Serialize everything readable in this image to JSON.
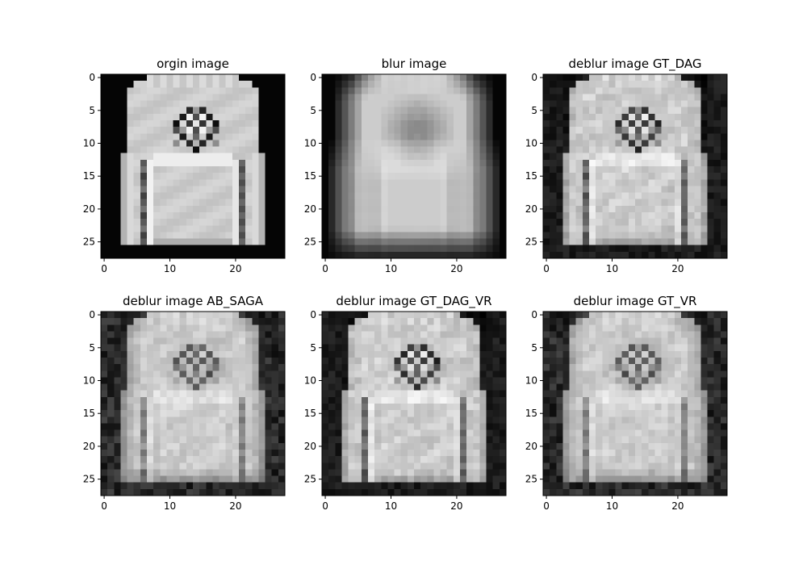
{
  "figure": {
    "background": "#ffffff",
    "colormap": "gray",
    "panels_note": ""
  },
  "chart_data": [
    {
      "type": "heatmap",
      "title": "orgin image",
      "image_size": [
        28,
        28
      ],
      "variant": "original",
      "xticks": [
        0,
        10,
        20
      ],
      "yticks": [
        0,
        5,
        10,
        15,
        20,
        25
      ],
      "xlim": [
        -0.5,
        27.5
      ],
      "ylim": [
        27.5,
        -0.5
      ],
      "grid": false,
      "colormap": "gray"
    },
    {
      "type": "heatmap",
      "title": "blur image",
      "image_size": [
        28,
        28
      ],
      "variant": "blur",
      "xticks": [
        0,
        10,
        20
      ],
      "yticks": [
        0,
        5,
        10,
        15,
        20,
        25
      ],
      "xlim": [
        -0.5,
        27.5
      ],
      "ylim": [
        27.5,
        -0.5
      ],
      "grid": false,
      "colormap": "gray"
    },
    {
      "type": "heatmap",
      "title": "deblur image GT_DAG",
      "image_size": [
        28,
        28
      ],
      "variant": "deblur_sharp",
      "xticks": [
        0,
        10,
        20
      ],
      "yticks": [
        0,
        5,
        10,
        15,
        20,
        25
      ],
      "xlim": [
        -0.5,
        27.5
      ],
      "ylim": [
        27.5,
        -0.5
      ],
      "grid": false,
      "colormap": "gray"
    },
    {
      "type": "heatmap",
      "title": "deblur image AB_SAGA",
      "image_size": [
        28,
        28
      ],
      "variant": "deblur_soft",
      "xticks": [
        0,
        10,
        20
      ],
      "yticks": [
        0,
        5,
        10,
        15,
        20,
        25
      ],
      "xlim": [
        -0.5,
        27.5
      ],
      "ylim": [
        27.5,
        -0.5
      ],
      "grid": false,
      "colormap": "gray"
    },
    {
      "type": "heatmap",
      "title": "deblur image GT_DAG_VR",
      "image_size": [
        28,
        28
      ],
      "variant": "deblur_sharp",
      "xticks": [
        0,
        10,
        20
      ],
      "yticks": [
        0,
        5,
        10,
        15,
        20,
        25
      ],
      "xlim": [
        -0.5,
        27.5
      ],
      "ylim": [
        27.5,
        -0.5
      ],
      "grid": false,
      "colormap": "gray"
    },
    {
      "type": "heatmap",
      "title": "deblur image GT_VR",
      "image_size": [
        28,
        28
      ],
      "variant": "deblur_soft",
      "xticks": [
        0,
        10,
        20
      ],
      "yticks": [
        0,
        5,
        10,
        15,
        20,
        25
      ],
      "xlim": [
        -0.5,
        27.5
      ],
      "ylim": [
        27.5,
        -0.5
      ],
      "grid": false,
      "colormap": "gray"
    }
  ]
}
